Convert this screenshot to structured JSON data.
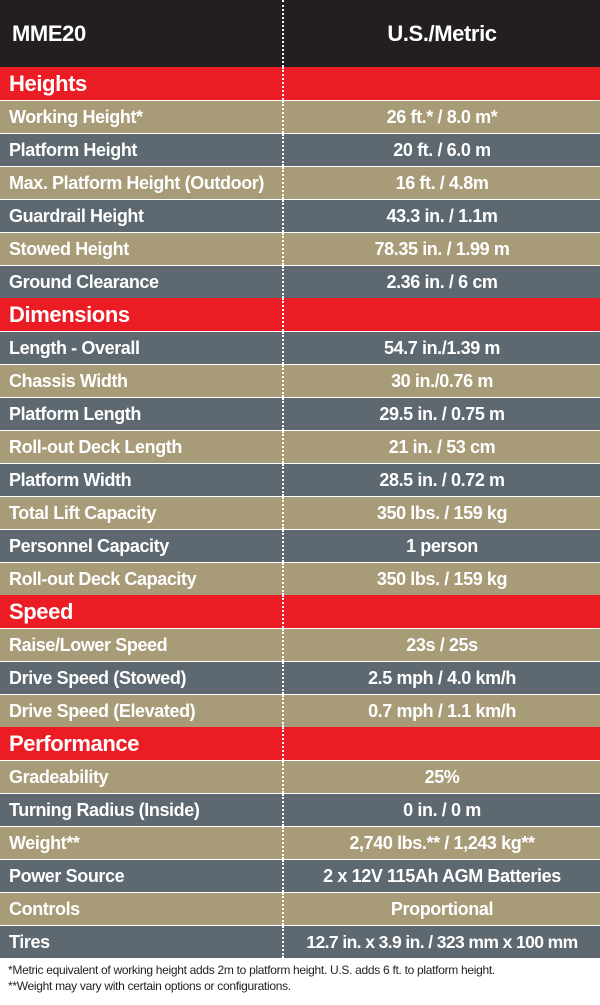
{
  "header": {
    "model": "MME20",
    "units": "U.S./Metric"
  },
  "sections": {
    "heights": {
      "title": "Heights",
      "rows": [
        {
          "label": "Working Height*",
          "value": "26 ft.* / 8.0 m*"
        },
        {
          "label": "Platform Height",
          "value": "20 ft. / 6.0 m"
        },
        {
          "label": "Max. Platform Height (Outdoor)",
          "value": "16 ft. / 4.8m"
        },
        {
          "label": "Guardrail Height",
          "value": "43.3 in. /  1.1m"
        },
        {
          "label": "Stowed Height",
          "value": "78.35 in. /  1.99 m"
        },
        {
          "label": "Ground Clearance",
          "value": "2.36 in. / 6 cm"
        }
      ]
    },
    "dimensions": {
      "title": "Dimensions",
      "rows": [
        {
          "label": "Length - Overall",
          "value": "54.7 in./1.39 m"
        },
        {
          "label": "Chassis Width",
          "value": "30 in./0.76 m"
        },
        {
          "label": "Platform Length",
          "value": "29.5 in. / 0.75 m"
        },
        {
          "label": "Roll-out Deck Length",
          "value": "21 in. / 53 cm"
        },
        {
          "label": "Platform Width",
          "value": "28.5 in. / 0.72 m"
        },
        {
          "label": "Total Lift Capacity",
          "value": "350 lbs.  /  159 kg"
        },
        {
          "label": "Personnel Capacity",
          "value": "1 person"
        },
        {
          "label": "Roll-out Deck Capacity",
          "value": "350 lbs.  /  159 kg"
        }
      ]
    },
    "speed": {
      "title": "Speed",
      "rows": [
        {
          "label": "Raise/Lower Speed",
          "value": "23s / 25s"
        },
        {
          "label": "Drive Speed (Stowed)",
          "value": "2.5 mph  / 4.0 km/h"
        },
        {
          "label": "Drive Speed (Elevated)",
          "value": "0.7 mph / 1.1 km/h"
        }
      ]
    },
    "performance": {
      "title": "Performance",
      "rows": [
        {
          "label": "Gradeability",
          "value": "25%"
        },
        {
          "label": "Turning Radius (Inside)",
          "value": "0 in. / 0 m"
        },
        {
          "label": "Weight**",
          "value": "2,740 lbs.** / 1,243 kg**"
        },
        {
          "label": "Power Source",
          "value": "2 x 12V 115Ah AGM Batteries"
        },
        {
          "label": "Controls",
          "value": "Proportional"
        },
        {
          "label": "Tires",
          "value": "12.7 in. x 3.9 in. / 323 mm x 100 mm"
        }
      ]
    }
  },
  "footnotes": {
    "working_height": "*Metric equivalent of working height adds 2m to platform height. U.S. adds 6 ft. to platform height.",
    "weight": "**Weight may vary with certain options or configurations."
  },
  "colors": {
    "header_bg": "#231f20",
    "section_bg": "#ec1c24",
    "row_tan": "#a89b78",
    "row_slate": "#5d6870"
  }
}
